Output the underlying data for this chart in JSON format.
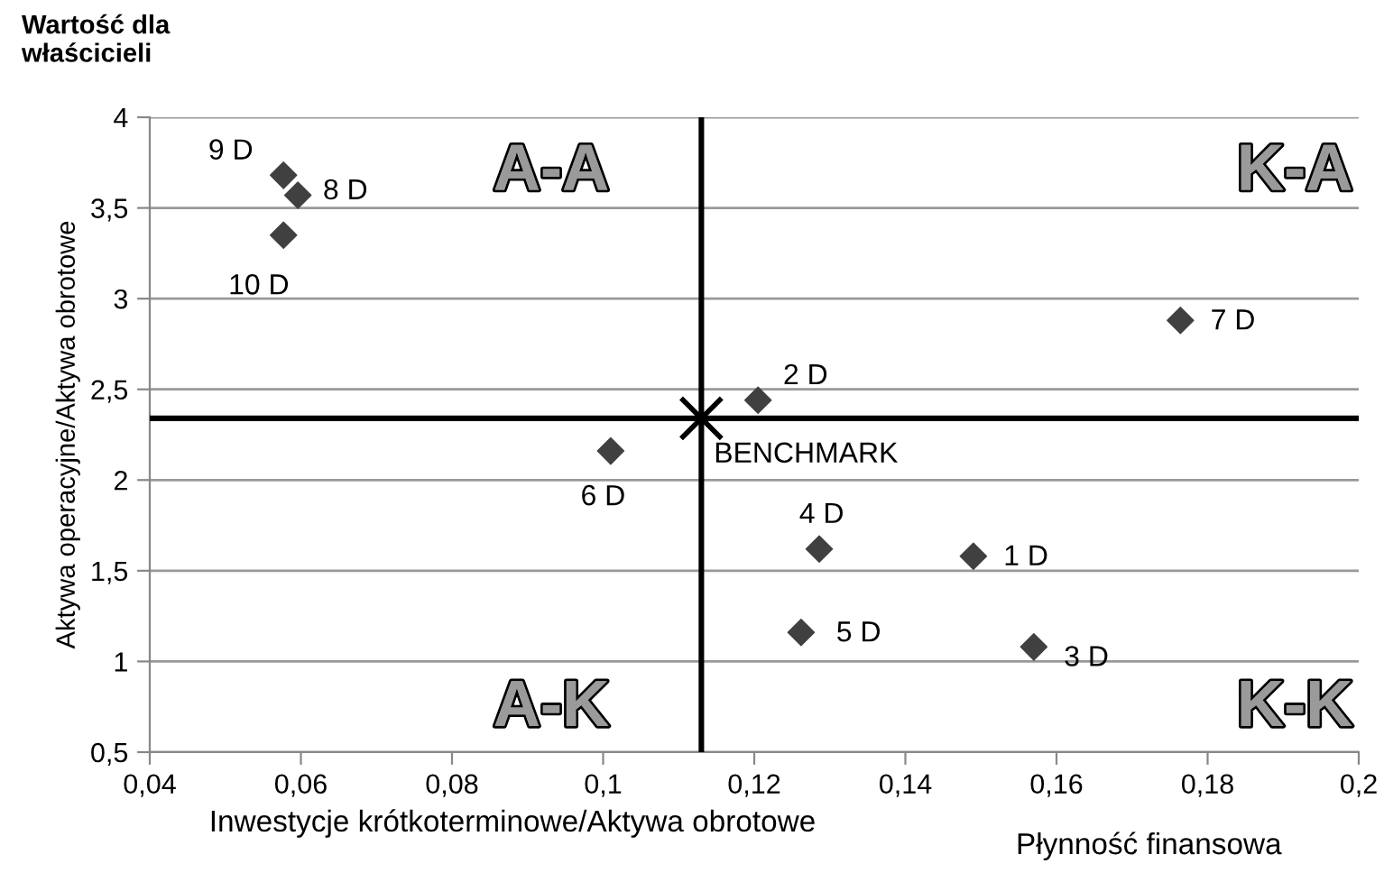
{
  "chart_data": {
    "type": "scatter",
    "xlabel": "Inwestycje krótkoterminowe/Aktywa obrotowe",
    "ylabel": "Aktywa operacyjne/Aktywa obrotowe",
    "xlim": [
      0.04,
      0.2
    ],
    "ylim": [
      0.5,
      4
    ],
    "xticks": [
      {
        "value": 0.04,
        "label": "0,04"
      },
      {
        "value": 0.06,
        "label": "0,06"
      },
      {
        "value": 0.08,
        "label": "0,08"
      },
      {
        "value": 0.1,
        "label": "0,1"
      },
      {
        "value": 0.12,
        "label": "0,12"
      },
      {
        "value": 0.14,
        "label": "0,14"
      },
      {
        "value": 0.16,
        "label": "0,16"
      },
      {
        "value": 0.18,
        "label": "0,18"
      },
      {
        "value": 0.2,
        "label": "0,2"
      }
    ],
    "yticks": [
      {
        "value": 0.5,
        "label": "0,5"
      },
      1,
      {
        "value": 1.5,
        "label": "1,5"
      },
      2,
      {
        "value": 2.5,
        "label": "2,5"
      },
      3,
      {
        "value": 3.5,
        "label": "3,5"
      },
      4
    ],
    "grid": "y",
    "series": [
      {
        "color": "#404040",
        "marker": "diamond",
        "x": [
          0.149,
          0.1205,
          0.157,
          0.1286,
          0.1262,
          0.101,
          0.1764,
          0.0596,
          0.0577,
          0.0577
        ],
        "values": [
          1.58,
          2.44,
          1.08,
          1.62,
          1.16,
          2.16,
          2.88,
          3.57,
          3.68,
          3.35
        ]
      },
      {
        "color": "#000000",
        "marker": "cross",
        "x": [
          0.113
        ],
        "values": [
          2.34
        ]
      }
    ],
    "ref_lines": [
      {
        "axis": "x",
        "value": 0.113,
        "color": "#000000"
      },
      {
        "axis": "y",
        "value": 2.34,
        "color": "#000000"
      }
    ],
    "annotations": [
      {
        "text": "1 D",
        "x": 0.149,
        "y": 1.58
      },
      {
        "text": "2 D",
        "x": 0.1205,
        "y": 2.44
      },
      {
        "text": "3 D",
        "x": 0.157,
        "y": 1.08
      },
      {
        "text": "4 D",
        "x": 0.1286,
        "y": 1.62
      },
      {
        "text": "5 D",
        "x": 0.1262,
        "y": 1.16
      },
      {
        "text": "6 D",
        "x": 0.101,
        "y": 2.16
      },
      {
        "text": "7 D",
        "x": 0.1764,
        "y": 2.88
      },
      {
        "text": "8 D",
        "x": 0.0596,
        "y": 3.57
      },
      {
        "text": "9 D",
        "x": 0.0577,
        "y": 3.68
      },
      {
        "text": "10 D",
        "x": 0.0577,
        "y": 3.35
      },
      {
        "text": "BENCHMARK",
        "x": 0.113,
        "y": 2.34
      },
      "Wartość dla właścicieli",
      "Płynność finansowa",
      "A-A",
      "K-A",
      "A-K",
      "K-K"
    ]
  }
}
